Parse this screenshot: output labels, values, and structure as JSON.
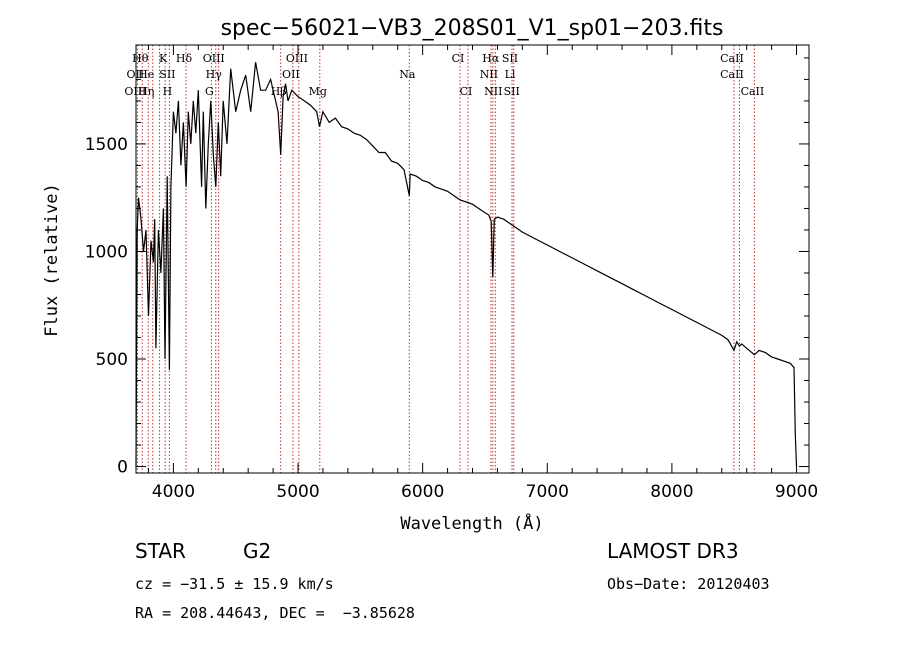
{
  "chart_data": {
    "type": "line",
    "title": "spec−56021−VB3_208S01_V1_sp01−203.fits",
    "xlabel": "Wavelength (Å)",
    "ylabel": "Flux (relative)",
    "xlim": [
      3700,
      9100
    ],
    "ylim": [
      -30,
      1960
    ],
    "xticks": [
      4000,
      5000,
      6000,
      7000,
      8000,
      9000
    ],
    "yticks": [
      0,
      500,
      1000,
      1500
    ],
    "series": [
      {
        "name": "flux",
        "x": [
          3700,
          3710,
          3720,
          3740,
          3760,
          3780,
          3800,
          3820,
          3840,
          3850,
          3860,
          3880,
          3900,
          3920,
          3933,
          3950,
          3968,
          3980,
          4000,
          4020,
          4040,
          4060,
          4080,
          4102,
          4120,
          4140,
          4160,
          4180,
          4200,
          4226,
          4240,
          4260,
          4280,
          4300,
          4320,
          4340,
          4360,
          4380,
          4400,
          4430,
          4460,
          4500,
          4540,
          4580,
          4620,
          4660,
          4700,
          4740,
          4780,
          4820,
          4840,
          4861,
          4880,
          4900,
          4920,
          4950,
          5000,
          5050,
          5100,
          5150,
          5172,
          5200,
          5250,
          5300,
          5350,
          5400,
          5450,
          5500,
          5550,
          5600,
          5650,
          5700,
          5750,
          5800,
          5850,
          5893,
          5900,
          5950,
          6000,
          6050,
          6100,
          6150,
          6200,
          6250,
          6300,
          6350,
          6400,
          6450,
          6500,
          6530,
          6550,
          6563,
          6575,
          6600,
          6650,
          6700,
          6750,
          6800,
          6900,
          7000,
          7100,
          7200,
          7300,
          7400,
          7500,
          7600,
          7700,
          7800,
          7900,
          8000,
          8100,
          8200,
          8300,
          8400,
          8450,
          8498,
          8520,
          8542,
          8560,
          8600,
          8662,
          8700,
          8750,
          8800,
          8850,
          8900,
          8950,
          8980,
          8990,
          9000
        ],
        "values": [
          0,
          1100,
          1250,
          1150,
          1000,
          1100,
          700,
          1050,
          950,
          1150,
          550,
          1100,
          900,
          1200,
          500,
          1350,
          450,
          1300,
          1650,
          1550,
          1700,
          1400,
          1600,
          1300,
          1650,
          1500,
          1700,
          1550,
          1750,
          1300,
          1650,
          1200,
          1500,
          1700,
          1450,
          1300,
          1600,
          1350,
          1700,
          1500,
          1850,
          1650,
          1750,
          1820,
          1650,
          1880,
          1750,
          1750,
          1800,
          1700,
          1650,
          1450,
          1720,
          1780,
          1700,
          1750,
          1720,
          1700,
          1680,
          1650,
          1580,
          1650,
          1600,
          1620,
          1580,
          1570,
          1550,
          1540,
          1520,
          1490,
          1460,
          1460,
          1420,
          1410,
          1380,
          1260,
          1360,
          1350,
          1330,
          1320,
          1300,
          1290,
          1280,
          1260,
          1240,
          1230,
          1220,
          1200,
          1180,
          1170,
          1140,
          880,
          1150,
          1160,
          1150,
          1130,
          1110,
          1090,
          1060,
          1030,
          1000,
          970,
          940,
          910,
          880,
          850,
          820,
          790,
          760,
          730,
          700,
          670,
          640,
          610,
          590,
          540,
          580,
          560,
          570,
          550,
          520,
          540,
          530,
          510,
          500,
          490,
          480,
          460,
          150,
          0
        ]
      }
    ],
    "lines": [
      {
        "w": 3711,
        "labels": [
          "",
          "O‌II",
          "O‌III"
        ]
      },
      {
        "w": 3750,
        "labels": [
          "Hθ",
          "",
          ""
        ]
      },
      {
        "w": 3798,
        "labels": [
          "",
          "He",
          "Hη"
        ]
      },
      {
        "w": 3835,
        "labels": [
          "",
          "",
          ""
        ]
      },
      {
        "w": 3889,
        "labels": [
          "",
          "",
          ""
        ]
      },
      {
        "w": 3934,
        "labels": [
          "K",
          "",
          ""
        ]
      },
      {
        "w": 3968,
        "labels": [
          "",
          "SII",
          "H"
        ]
      },
      {
        "w": 4101,
        "labels": [
          "Hδ",
          "",
          ""
        ]
      },
      {
        "w": 4305,
        "labels": [
          "",
          "",
          "G"
        ]
      },
      {
        "w": 4340,
        "labels": [
          "O‌III",
          "Hγ",
          ""
        ]
      },
      {
        "w": 4363,
        "labels": [
          "",
          "",
          ""
        ]
      },
      {
        "w": 4861,
        "labels": [
          "",
          "",
          "Hβ"
        ]
      },
      {
        "w": 4959,
        "labels": [
          "",
          "O‌II",
          ""
        ]
      },
      {
        "w": 5007,
        "labels": [
          "O‌III",
          "",
          ""
        ]
      },
      {
        "w": 5175,
        "labels": [
          "",
          "",
          "Mg"
        ]
      },
      {
        "w": 5893,
        "labels": [
          "",
          "Na",
          ""
        ]
      },
      {
        "w": 6300,
        "labels": [
          "CI",
          "",
          ""
        ]
      },
      {
        "w": 6364,
        "labels": [
          "",
          "",
          "CI"
        ]
      },
      {
        "w": 6548,
        "labels": [
          "",
          "N‌II",
          ""
        ]
      },
      {
        "w": 6563,
        "labels": [
          "Hα",
          "",
          ""
        ]
      },
      {
        "w": 6583,
        "labels": [
          "",
          "",
          "NII"
        ]
      },
      {
        "w": 6717,
        "labels": [
          "SII",
          "L‌l",
          ""
        ]
      },
      {
        "w": 6731,
        "labels": [
          "",
          "",
          "SII"
        ]
      },
      {
        "w": 8498,
        "labels": [
          "CaII",
          "CaII",
          ""
        ]
      },
      {
        "w": 8542,
        "labels": [
          "",
          "",
          ""
        ]
      },
      {
        "w": 8662,
        "labels": [
          "",
          "",
          "CaII"
        ]
      }
    ]
  },
  "info": {
    "class": "STAR",
    "subclass": "G2",
    "survey": "LAMOST DR3",
    "cz": "cz = −31.5 ± 15.9 km/s",
    "obs_date": "Obs−Date: 20120403",
    "radec": "RA = 208.44643, DEC =  −3.85628"
  }
}
